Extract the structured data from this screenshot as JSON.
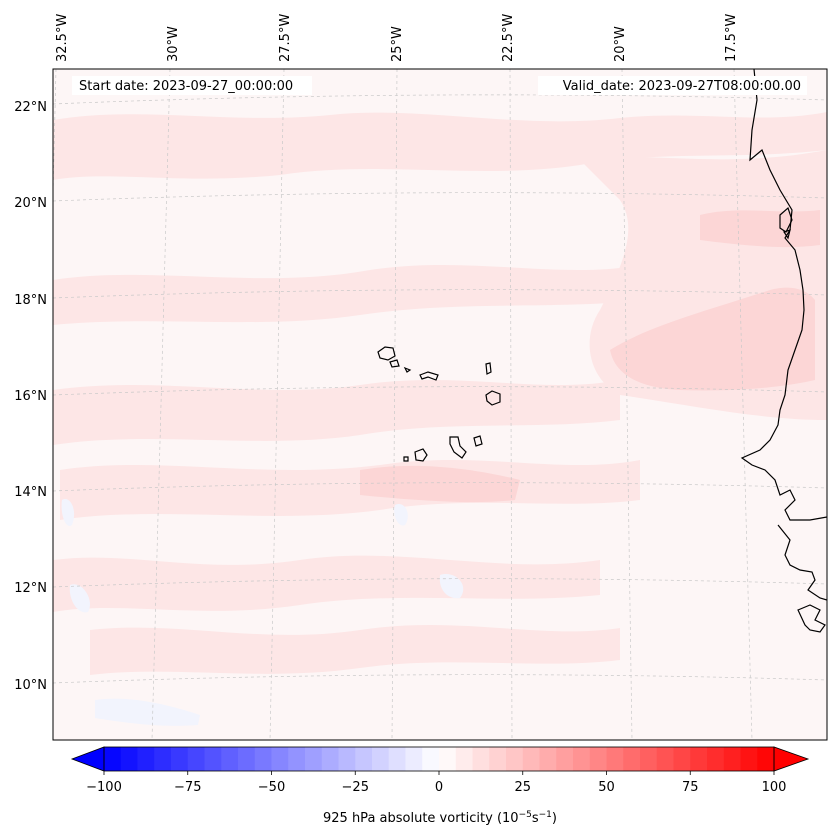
{
  "map": {
    "projection_grid": {
      "lon_labels": [
        "32.5°W",
        "30°W",
        "27.5°W",
        "25°W",
        "22.5°W",
        "20°W",
        "17.5°W"
      ],
      "lat_labels": [
        "22°N",
        "20°N",
        "18°N",
        "16°N",
        "14°N",
        "12°N",
        "10°N"
      ]
    },
    "start_date_text": "Start date: 2023-09-27_00:00:00",
    "valid_date_text": "Valid_date: 2023-09-27T08:00:00.00",
    "field_colors": {
      "background": "#fdf6f6",
      "weak_positive": "#fde6e6",
      "moderate_positive": "#fcd6d6",
      "weak_negative": "#f2f4fd"
    }
  },
  "colorbar": {
    "tick_labels": [
      "−100",
      "−75",
      "−50",
      "−25",
      "0",
      "25",
      "50",
      "75",
      "100"
    ],
    "min": -100,
    "max": 100,
    "step": 5,
    "label_main": "925 hPa absolute vorticity (10",
    "label_exp1": "−5",
    "label_mid": "s",
    "label_exp2": "−1",
    "label_end": ")",
    "colormap": "bwr"
  }
}
